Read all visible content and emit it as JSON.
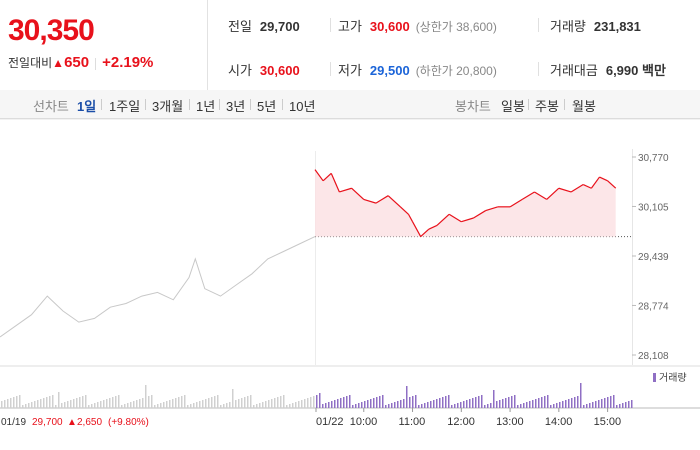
{
  "quote": {
    "price": "30,350",
    "change_label": "전일대비",
    "change_arrow": "▲",
    "change_amount": "650",
    "change_rate": "+2.19%",
    "prev_close": {
      "label": "전일",
      "value": "29,700"
    },
    "high": {
      "label": "고가",
      "value": "30,600",
      "note": "(상한가 38,600)"
    },
    "volume": {
      "label": "거래량",
      "value": "231,831"
    },
    "open": {
      "label": "시가",
      "value": "30,600"
    },
    "low": {
      "label": "저가",
      "value": "29,500",
      "note": "(하한가 20,800)"
    },
    "trade_value": {
      "label": "거래대금",
      "value": "6,990 백만"
    }
  },
  "line_tabs": {
    "label": "선차트",
    "items": [
      "1일",
      "1주일",
      "3개월",
      "1년",
      "3년",
      "5년",
      "10년"
    ],
    "active": "1일"
  },
  "candle_tabs": {
    "label": "봉차트",
    "items": [
      "일봉",
      "주봉",
      "월봉"
    ]
  },
  "chart": {
    "volume_legend": "거래량",
    "prev_info": {
      "date": "01/19",
      "close": "29,700",
      "arrow": "▲",
      "change": "2,650",
      "rate": "(+9.80%)"
    },
    "colors": {
      "up": "#e8111b",
      "down": "#1b64d8",
      "prev": "#c8c8c8",
      "volume": "#8f6fc4"
    }
  },
  "chart_data": {
    "type": "line",
    "y_ticks": [
      "30,770",
      "30,105",
      "29,439",
      "28,774",
      "28,108"
    ],
    "ylim": [
      28108,
      30770
    ],
    "x_ticks": [
      "01/22",
      "10:00",
      "11:00",
      "12:00",
      "13:00",
      "14:00",
      "15:00"
    ],
    "baseline": 29700,
    "series": [
      {
        "name": "01/19",
        "x": [
          0,
          0.05,
          0.1,
          0.15,
          0.2,
          0.25,
          0.3,
          0.35,
          0.4,
          0.45,
          0.5,
          0.55,
          0.6,
          0.62,
          0.65,
          0.7,
          0.75,
          0.8,
          0.85,
          0.9,
          0.95,
          1
        ],
        "values": [
          28350,
          28500,
          28650,
          28900,
          28700,
          28550,
          28600,
          28750,
          28800,
          28900,
          28950,
          28850,
          29150,
          29400,
          29000,
          28900,
          29050,
          29200,
          29400,
          29500,
          29600,
          29700
        ]
      },
      {
        "name": "01/22",
        "x": [
          "09:00",
          "09:10",
          "09:20",
          "09:30",
          "09:45",
          "10:00",
          "10:15",
          "10:30",
          "10:45",
          "10:55",
          "11:00",
          "11:10",
          "11:20",
          "11:30",
          "11:45",
          "12:00",
          "12:15",
          "12:30",
          "12:45",
          "13:00",
          "13:15",
          "13:30",
          "13:45",
          "14:00",
          "14:15",
          "14:30",
          "14:40",
          "14:50",
          "15:00",
          "15:10"
        ],
        "values": [
          30600,
          30450,
          30550,
          30300,
          30350,
          30200,
          30150,
          30250,
          30100,
          30000,
          29900,
          29700,
          29800,
          29850,
          30000,
          29900,
          29950,
          30050,
          30100,
          30100,
          30200,
          30300,
          30200,
          30350,
          30300,
          30400,
          30350,
          30500,
          30450,
          30350
        ]
      }
    ]
  }
}
